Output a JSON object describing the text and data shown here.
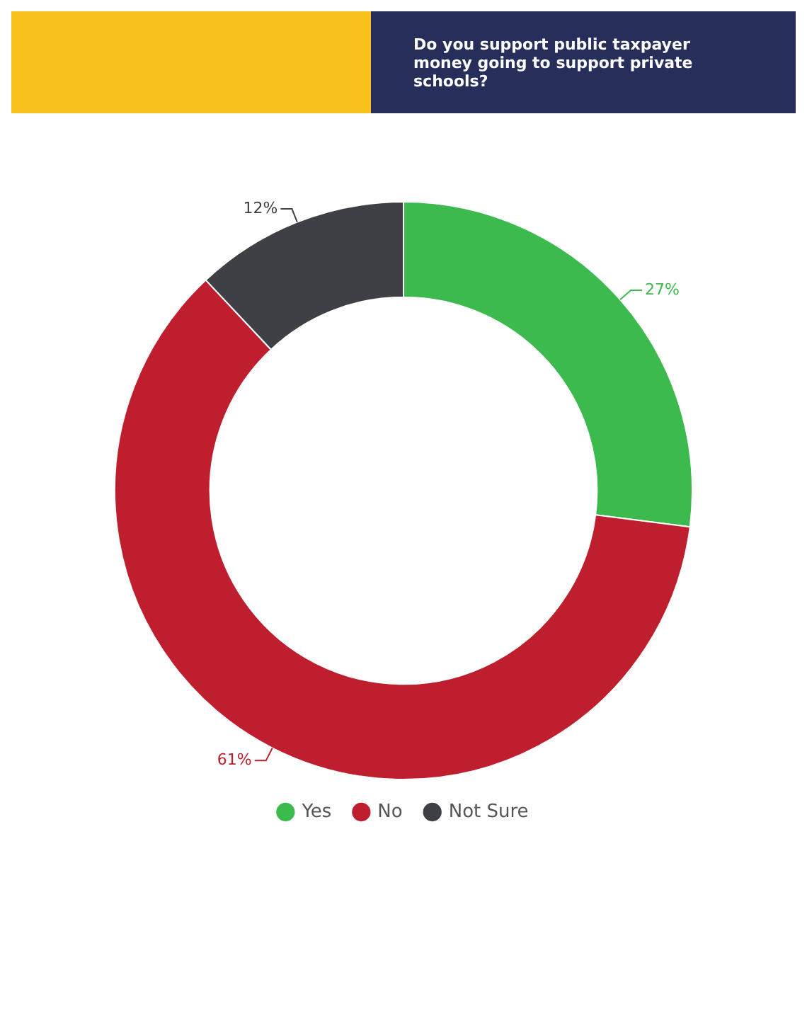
{
  "chart_data": {
    "type": "donut",
    "title": "Do you support public taxpayer money going to support private schools?",
    "categories": [
      "Yes",
      "No",
      "Not Sure"
    ],
    "values": [
      27,
      61,
      12
    ],
    "value_labels": [
      "27%",
      "61%",
      "12%"
    ],
    "colors": [
      "#3dba4e",
      "#be1e2d",
      "#3f4045"
    ],
    "legend": "bottom"
  }
}
